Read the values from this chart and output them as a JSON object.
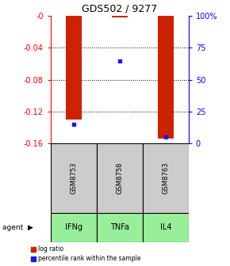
{
  "title": "GDS502 / 9277",
  "samples": [
    "GSM8753",
    "GSM8758",
    "GSM8763"
  ],
  "agents": [
    "IFNg",
    "TNFa",
    "IL4"
  ],
  "log_ratios": [
    -0.13,
    -0.002,
    -0.154
  ],
  "percentile_ranks_pct": [
    15,
    65,
    5
  ],
  "yticks_left": [
    0,
    -0.04,
    -0.08,
    -0.12,
    -0.16
  ],
  "ymin": -0.16,
  "ymax": 0.0,
  "bar_width": 0.35,
  "bar_color_red": "#cc2200",
  "bar_color_blue": "#1a1aee",
  "sample_bg": "#cccccc",
  "agent_bg_color": "#99ee99",
  "legend_red_label": "log ratio",
  "legend_blue_label": "percentile rank within the sample",
  "agent_label": "agent"
}
